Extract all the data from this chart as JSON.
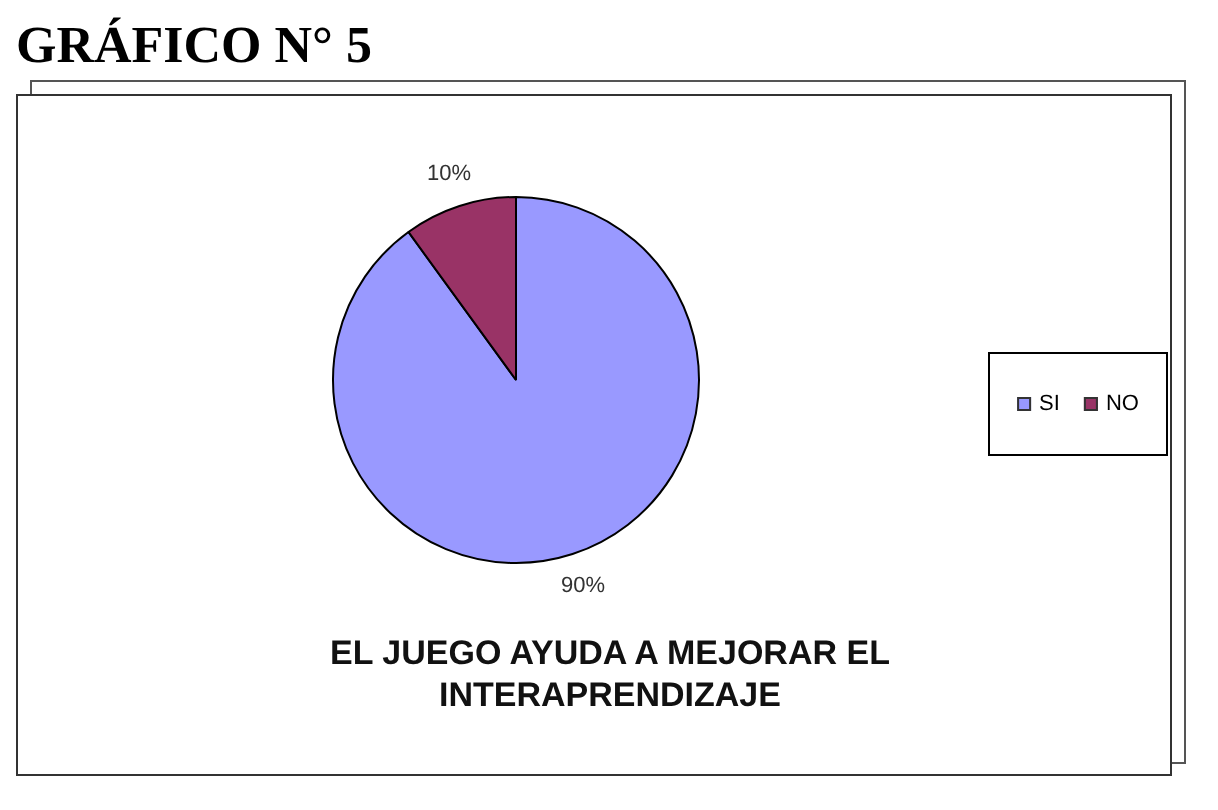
{
  "chart_data": {
    "type": "pie",
    "title": "EL JUEGO AYUDA A MEJORAR EL INTERAPRENDIZAJE",
    "annotations": [
      "GRÁFICO N° 5"
    ],
    "categories": [
      "SI",
      "NO"
    ],
    "values": [
      90,
      10
    ],
    "colors": [
      "#9999ff",
      "#993366"
    ],
    "value_labels": [
      "90%",
      "10%"
    ],
    "legend": "right"
  }
}
